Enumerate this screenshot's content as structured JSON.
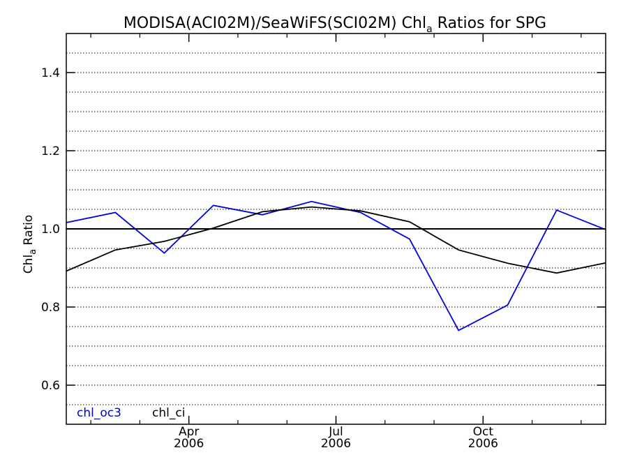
{
  "chart_data": {
    "type": "line",
    "title": {
      "main": "MODISA(ACI02M)/SeaWiFS(SCI02M)  Chl",
      "sub": "a",
      "rest": " Ratios for SPG"
    },
    "ylabel": {
      "main": "Chl",
      "sub": "a",
      "rest": " Ratio"
    },
    "ylim": [
      0.5,
      1.5
    ],
    "xlim": [
      0,
      11
    ],
    "y_ticks": [
      {
        "value": 0.6,
        "label": "0.6"
      },
      {
        "value": 0.8,
        "label": "0.8"
      },
      {
        "value": 1.0,
        "label": "1.0"
      },
      {
        "value": 1.2,
        "label": "1.2"
      },
      {
        "value": 1.4,
        "label": "1.4"
      }
    ],
    "y_grid_step": 0.05,
    "x_ticks": [
      {
        "value": 2.5,
        "month": "Apr",
        "year": "2006"
      },
      {
        "value": 5.5,
        "month": "Jul",
        "year": "2006"
      },
      {
        "value": 8.5,
        "month": "Oct",
        "year": "2006"
      }
    ],
    "x_minor_ticks": [
      0.5,
      1.5,
      2.5,
      3.5,
      4.5,
      5.5,
      6.5,
      7.5,
      8.5,
      9.5,
      10.5
    ],
    "reference_line": 1.0,
    "grid": "dotted-horizontal",
    "legend_position": "bottom-left",
    "x": [
      0,
      1,
      2,
      3,
      4,
      5,
      6,
      7,
      8,
      9,
      10,
      11
    ],
    "series": [
      {
        "name": "chl_oc3",
        "color": "#0000dd",
        "values": [
          1.016,
          1.042,
          0.938,
          1.06,
          1.036,
          1.07,
          1.042,
          0.974,
          0.74,
          0.805,
          1.048,
          0.998
        ]
      },
      {
        "name": "chl_ci",
        "color": "#000000",
        "values": [
          0.892,
          0.946,
          0.968,
          1.002,
          1.044,
          1.056,
          1.046,
          1.018,
          0.946,
          0.912,
          0.887,
          0.913
        ]
      }
    ]
  }
}
